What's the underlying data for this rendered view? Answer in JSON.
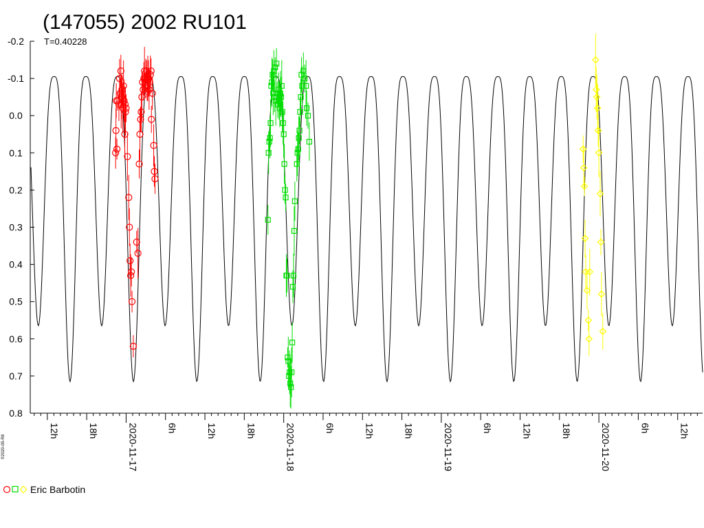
{
  "chart_data": {
    "type": "scatter",
    "title": "(147055) 2002 RU101",
    "subtitle": "T=0.40228",
    "copyright": "©2020-05-R8",
    "y_axis": {
      "inverted": true,
      "range": [
        -0.2,
        0.8
      ],
      "ticks": [
        "-0.2",
        "-0.1",
        "0.0",
        "0.1",
        "0.2",
        "0.3",
        "0.4",
        "0.5",
        "0.6",
        "0.7",
        "0.8"
      ]
    },
    "x_axis": {
      "range_hours": [
        -14.6,
        87.8
      ],
      "ticks": [
        {
          "h": -12,
          "label": "12h",
          "major": false
        },
        {
          "h": -6,
          "label": "18h",
          "major": false
        },
        {
          "h": 0,
          "label": "2020-11-17",
          "major": true
        },
        {
          "h": 6,
          "label": "6h",
          "major": false
        },
        {
          "h": 12,
          "label": "12h",
          "major": false
        },
        {
          "h": 18,
          "label": "18h",
          "major": false
        },
        {
          "h": 24,
          "label": "2020-11-18",
          "major": true
        },
        {
          "h": 30,
          "label": "6h",
          "major": false
        },
        {
          "h": 36,
          "label": "12h",
          "major": false
        },
        {
          "h": 42,
          "label": "18h",
          "major": false
        },
        {
          "h": 48,
          "label": "2020-11-19",
          "major": true
        },
        {
          "h": 54,
          "label": "6h",
          "major": false
        },
        {
          "h": 60,
          "label": "12h",
          "major": false
        },
        {
          "h": 66,
          "label": "18h",
          "major": false
        },
        {
          "h": 72,
          "label": "2020-11-20",
          "major": true
        },
        {
          "h": 78,
          "label": "6h",
          "major": false
        },
        {
          "h": 84,
          "label": "12h",
          "major": false
        }
      ]
    },
    "model_curve": {
      "period_hours": 9.65472,
      "phase_hours": -1.3,
      "max_mag": -0.105,
      "min_mags": [
        0.715,
        0.565
      ],
      "color": "#000000"
    },
    "series": [
      {
        "name": "Eric Barbotin",
        "marker": "circle",
        "color": "#ff0000",
        "points": [
          [
            -1.6,
            0.1
          ],
          [
            -1.55,
            0.04
          ],
          [
            -1.5,
            -0.04
          ],
          [
            -1.4,
            0.09
          ],
          [
            -1.3,
            -0.04
          ],
          [
            -1.1,
            -0.03
          ],
          [
            -1.0,
            -0.1
          ],
          [
            -0.9,
            -0.06
          ],
          [
            -0.8,
            -0.12
          ],
          [
            -0.75,
            -0.03
          ],
          [
            -0.7,
            -0.05
          ],
          [
            -0.6,
            -0.07
          ],
          [
            -0.5,
            -0.02
          ],
          [
            -0.4,
            -0.08
          ],
          [
            -0.3,
            -0.04
          ],
          [
            -0.2,
            0.05
          ],
          [
            -0.15,
            -0.03
          ],
          [
            -0.1,
            -0.01
          ],
          [
            0.0,
            -0.02
          ],
          [
            0.2,
            0.11
          ],
          [
            0.4,
            0.22
          ],
          [
            0.5,
            0.3
          ],
          [
            0.6,
            0.39
          ],
          [
            0.7,
            0.43
          ],
          [
            0.8,
            0.42
          ],
          [
            0.9,
            0.5
          ],
          [
            1.1,
            0.62
          ],
          [
            1.6,
            0.34
          ],
          [
            1.8,
            0.37
          ],
          [
            2.0,
            0.13
          ],
          [
            2.1,
            0.05
          ],
          [
            2.2,
            0.01
          ],
          [
            2.3,
            -0.01
          ],
          [
            2.4,
            -0.05
          ],
          [
            2.5,
            -0.09
          ],
          [
            2.6,
            -0.07
          ],
          [
            2.7,
            -0.1
          ],
          [
            2.8,
            -0.12
          ],
          [
            2.9,
            -0.09
          ],
          [
            3.0,
            -0.1
          ],
          [
            3.1,
            -0.12
          ],
          [
            3.2,
            -0.08
          ],
          [
            3.3,
            -0.1
          ],
          [
            3.4,
            -0.1
          ],
          [
            3.5,
            -0.07
          ],
          [
            3.6,
            -0.09
          ],
          [
            3.7,
            -0.11
          ],
          [
            3.8,
            -0.12
          ],
          [
            3.85,
            0.01
          ],
          [
            4.0,
            -0.06
          ],
          [
            4.2,
            0.08
          ],
          [
            4.3,
            0.15
          ],
          [
            4.4,
            0.17
          ]
        ]
      },
      {
        "marker": "square",
        "color": "#00dd00",
        "points": [
          [
            21.6,
            0.28
          ],
          [
            21.7,
            0.1
          ],
          [
            21.8,
            0.07
          ],
          [
            21.9,
            0.06
          ],
          [
            22.0,
            0.02
          ],
          [
            22.1,
            -0.08
          ],
          [
            22.2,
            -0.09
          ],
          [
            22.3,
            -0.11
          ],
          [
            22.4,
            -0.06
          ],
          [
            22.5,
            -0.12
          ],
          [
            22.6,
            -0.05
          ],
          [
            22.7,
            -0.13
          ],
          [
            22.8,
            -0.04
          ],
          [
            22.9,
            -0.14
          ],
          [
            23.0,
            -0.06
          ],
          [
            23.1,
            -0.03
          ],
          [
            23.2,
            -0.07
          ],
          [
            23.3,
            -0.04
          ],
          [
            23.4,
            -0.02
          ],
          [
            23.5,
            -0.06
          ],
          [
            23.6,
            -0.05
          ],
          [
            23.7,
            -0.08
          ],
          [
            23.8,
            -0.01
          ],
          [
            23.9,
            0.02
          ],
          [
            24.0,
            0.05
          ],
          [
            24.1,
            0.13
          ],
          [
            24.2,
            0.2
          ],
          [
            24.3,
            0.22
          ],
          [
            24.4,
            0.43
          ],
          [
            24.5,
            0.43
          ],
          [
            24.6,
            0.65
          ],
          [
            24.7,
            0.66
          ],
          [
            24.8,
            0.7
          ],
          [
            24.9,
            0.69
          ],
          [
            25.0,
            0.72
          ],
          [
            25.1,
            0.73
          ],
          [
            25.2,
            0.69
          ],
          [
            25.3,
            0.61
          ],
          [
            25.4,
            0.46
          ],
          [
            25.5,
            0.43
          ],
          [
            25.6,
            0.31
          ],
          [
            25.7,
            0.23
          ],
          [
            26.0,
            0.13
          ],
          [
            26.1,
            0.1
          ],
          [
            26.2,
            0.09
          ],
          [
            26.3,
            0.06
          ],
          [
            26.4,
            0.04
          ],
          [
            26.5,
            -0.01
          ],
          [
            26.6,
            -0.05
          ],
          [
            26.7,
            -0.11
          ],
          [
            26.8,
            -0.08
          ],
          [
            27.0,
            -0.12
          ],
          [
            27.2,
            -0.1
          ],
          [
            27.4,
            -0.08
          ],
          [
            27.5,
            -0.02
          ],
          [
            27.7,
            0.0
          ],
          [
            27.9,
            0.07
          ]
        ]
      },
      {
        "marker": "diamond",
        "color": "#ffff00",
        "points": [
          [
            69.6,
            0.09
          ],
          [
            69.7,
            0.14
          ],
          [
            69.8,
            0.19
          ],
          [
            69.9,
            0.33
          ],
          [
            70.0,
            0.42
          ],
          [
            70.2,
            0.47
          ],
          [
            70.4,
            0.55
          ],
          [
            70.5,
            0.6
          ],
          [
            70.6,
            0.42
          ],
          [
            71.5,
            -0.15
          ],
          [
            71.6,
            -0.07
          ],
          [
            71.7,
            -0.05
          ],
          [
            71.8,
            -0.02
          ],
          [
            71.9,
            0.04
          ],
          [
            72.0,
            0.1
          ],
          [
            72.2,
            0.21
          ],
          [
            72.3,
            0.34
          ],
          [
            72.4,
            0.48
          ],
          [
            72.6,
            0.58
          ]
        ]
      }
    ]
  }
}
